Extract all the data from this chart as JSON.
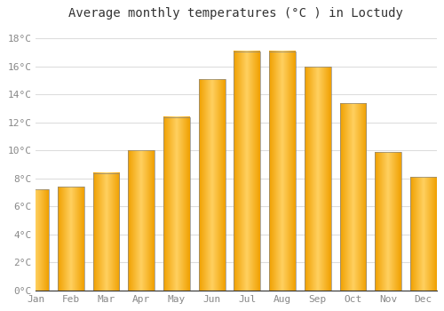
{
  "title": "Average monthly temperatures (°C ) in Loctudy",
  "months": [
    "Jan",
    "Feb",
    "Mar",
    "Apr",
    "May",
    "Jun",
    "Jul",
    "Aug",
    "Sep",
    "Oct",
    "Nov",
    "Dec"
  ],
  "values": [
    7.2,
    7.4,
    8.4,
    10.0,
    12.4,
    15.1,
    17.1,
    17.1,
    16.0,
    13.4,
    9.9,
    8.1
  ],
  "bar_color_center": "#FFD060",
  "bar_color_edge": "#F0A000",
  "bar_outline_color": "#888888",
  "background_color": "#FFFFFF",
  "plot_bg_color": "#FFFFFF",
  "grid_color": "#DDDDDD",
  "ylim": [
    0,
    19
  ],
  "yticks": [
    0,
    2,
    4,
    6,
    8,
    10,
    12,
    14,
    16,
    18
  ],
  "title_fontsize": 10,
  "tick_fontsize": 8,
  "tick_color": "#888888",
  "spine_color": "#333333",
  "bar_width": 0.75
}
